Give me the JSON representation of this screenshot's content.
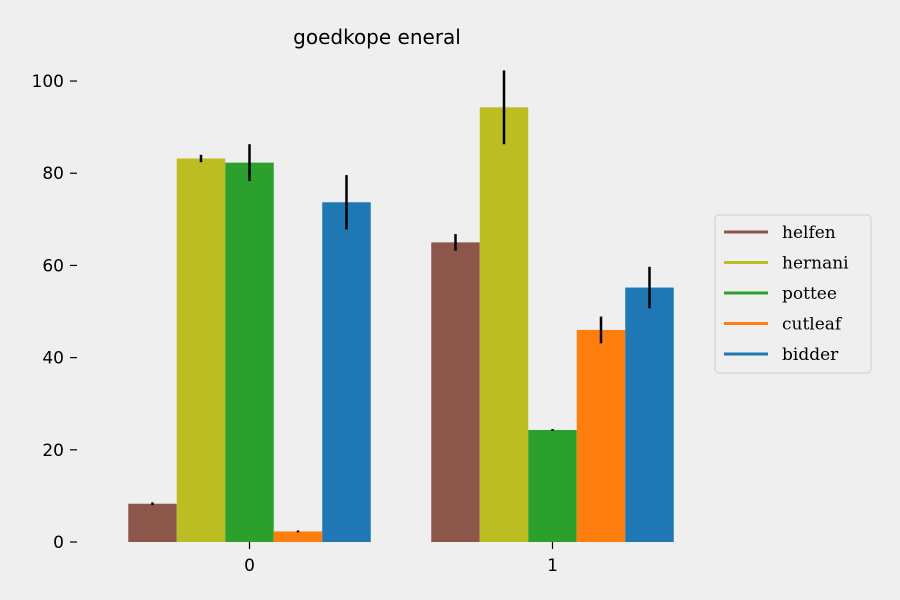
{
  "chart_data": {
    "type": "bar",
    "title": "goedkope eneral",
    "xlabel": "",
    "ylabel": "",
    "categories": [
      "0",
      "1"
    ],
    "ylim": [
      0,
      105
    ],
    "yticks": [
      0,
      20,
      40,
      60,
      80,
      100
    ],
    "grid": false,
    "legend_position": "right",
    "series": [
      {
        "name": "helfen",
        "color": "#8c564b",
        "values": [
          8.3,
          65.0
        ],
        "errors": [
          0.3,
          1.8
        ]
      },
      {
        "name": "hernani",
        "color": "#bcbd22",
        "values": [
          83.2,
          94.3
        ],
        "errors": [
          0.8,
          8.0
        ]
      },
      {
        "name": "pottee",
        "color": "#2ca02c",
        "values": [
          82.3,
          24.3
        ],
        "errors": [
          4.0,
          0.2
        ]
      },
      {
        "name": "cutleaf",
        "color": "#ff7f0e",
        "values": [
          2.3,
          46.0
        ],
        "errors": [
          0.2,
          2.9
        ]
      },
      {
        "name": "bidder",
        "color": "#1f77b4",
        "values": [
          73.7,
          55.2
        ],
        "errors": [
          5.9,
          4.5
        ]
      }
    ]
  }
}
